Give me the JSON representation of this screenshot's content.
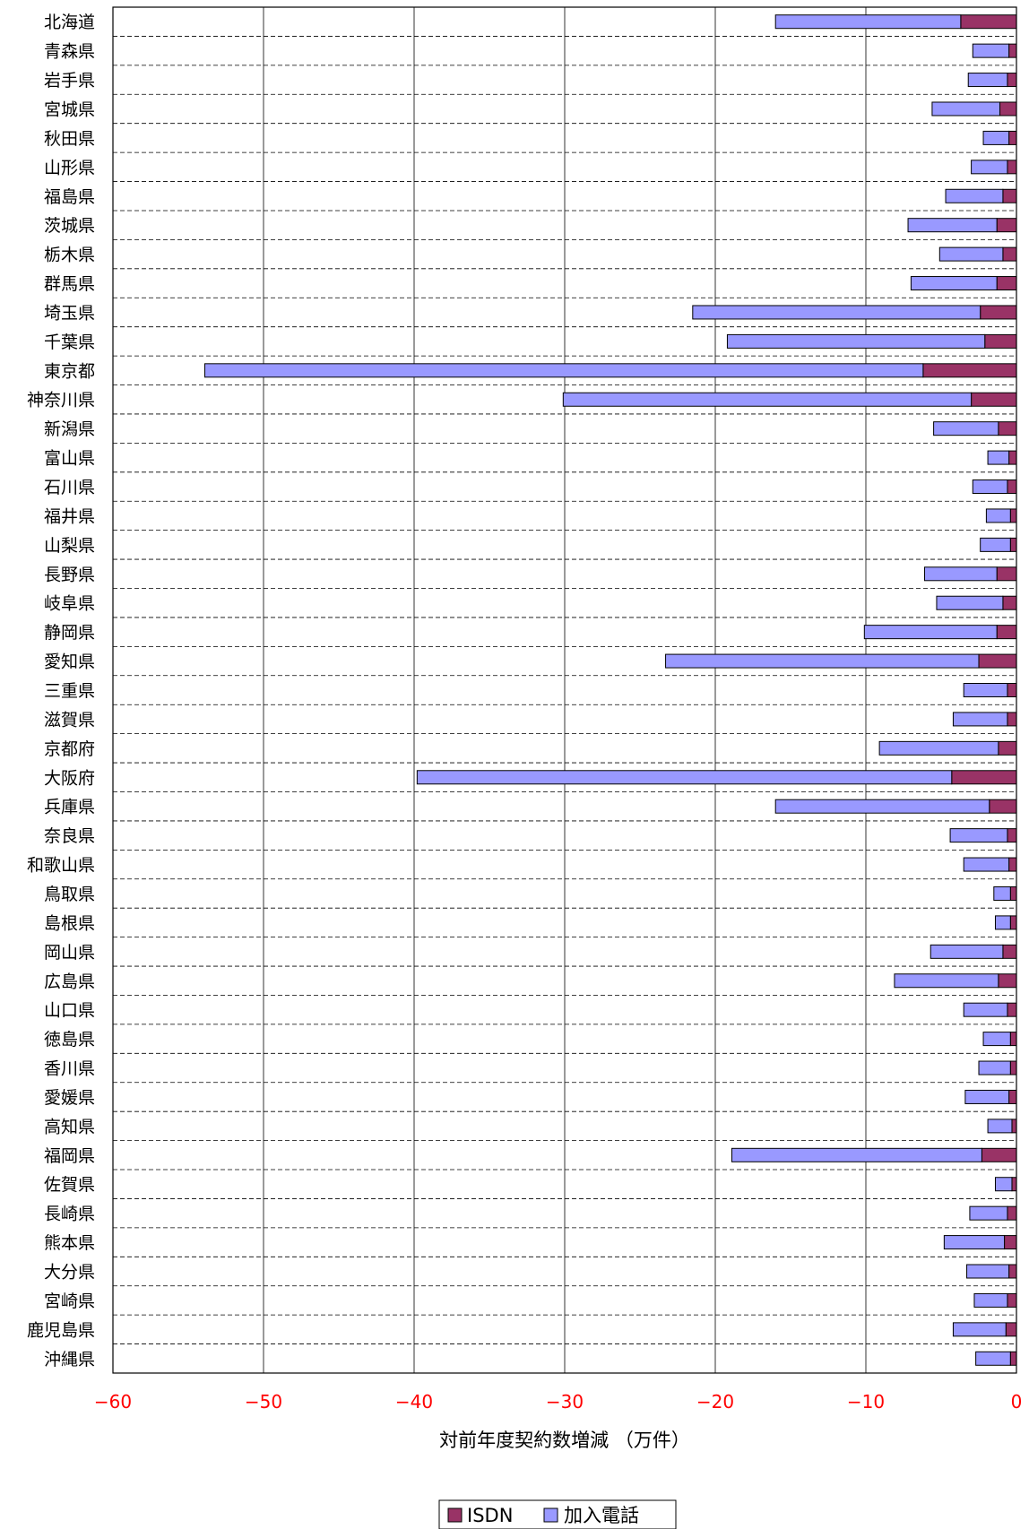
{
  "chart_data": {
    "type": "bar",
    "orientation": "horizontal",
    "stacked": true,
    "categories": [
      "北海道",
      "青森県",
      "岩手県",
      "宮城県",
      "秋田県",
      "山形県",
      "福島県",
      "茨城県",
      "栃木県",
      "群馬県",
      "埼玉県",
      "千葉県",
      "東京都",
      "神奈川県",
      "新潟県",
      "富山県",
      "石川県",
      "福井県",
      "山梨県",
      "長野県",
      "岐阜県",
      "静岡県",
      "愛知県",
      "三重県",
      "滋賀県",
      "京都府",
      "大阪府",
      "兵庫県",
      "奈良県",
      "和歌山県",
      "鳥取県",
      "島根県",
      "岡山県",
      "広島県",
      "山口県",
      "徳島県",
      "香川県",
      "愛媛県",
      "高知県",
      "福岡県",
      "佐賀県",
      "長崎県",
      "熊本県",
      "大分県",
      "宮崎県",
      "鹿児島県",
      "沖縄県"
    ],
    "series": [
      {
        "name": "ISDN",
        "color": "#993366",
        "values": [
          -3.7,
          -0.5,
          -0.6,
          -1.1,
          -0.5,
          -0.6,
          -0.9,
          -1.3,
          -0.9,
          -1.3,
          -2.4,
          -2.1,
          -6.2,
          -3.0,
          -1.2,
          -0.5,
          -0.6,
          -0.4,
          -0.4,
          -1.3,
          -0.9,
          -1.3,
          -2.5,
          -0.6,
          -0.6,
          -1.2,
          -4.3,
          -1.8,
          -0.6,
          -0.5,
          -0.4,
          -0.4,
          -0.9,
          -1.2,
          -0.6,
          -0.4,
          -0.4,
          -0.5,
          -0.3,
          -2.3,
          -0.3,
          -0.6,
          -0.8,
          -0.5,
          -0.6,
          -0.7,
          -0.4
        ]
      },
      {
        "name": "加入電話",
        "color": "#9999ff",
        "values": [
          -12.3,
          -2.4,
          -2.6,
          -4.5,
          -1.7,
          -2.4,
          -3.8,
          -5.9,
          -4.2,
          -5.7,
          -19.1,
          -17.1,
          -47.7,
          -27.1,
          -4.3,
          -1.4,
          -2.3,
          -1.6,
          -2.0,
          -4.8,
          -4.4,
          -8.8,
          -20.8,
          -2.9,
          -3.6,
          -7.9,
          -35.5,
          -14.2,
          -3.8,
          -3.0,
          -1.1,
          -1.0,
          -4.8,
          -6.9,
          -2.9,
          -1.8,
          -2.1,
          -2.9,
          -1.6,
          -16.6,
          -1.1,
          -2.5,
          -4.0,
          -2.8,
          -2.2,
          -3.5,
          -2.3
        ]
      }
    ],
    "xlabel": "対前年度契約数増減 （万件）",
    "xlim": [
      -60,
      0
    ],
    "xticks": [
      "−60",
      "−50",
      "−40",
      "−30",
      "−20",
      "−10",
      "0"
    ],
    "tick_color": "#ff0000",
    "grid": true,
    "legend": "bottom-center"
  }
}
